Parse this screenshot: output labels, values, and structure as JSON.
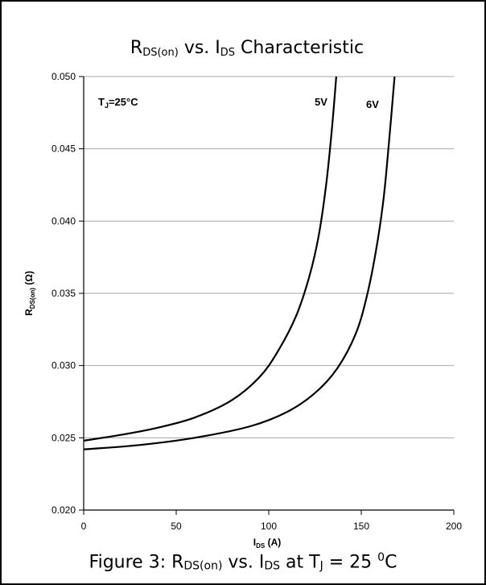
{
  "chart_data": {
    "type": "line",
    "title": {
      "main": "R",
      "sub": "DS(on)",
      "rest": " vs. I",
      "sub2": "DS",
      "tail": " Characteristic"
    },
    "xlabel": {
      "main": "I",
      "sub": "DS",
      "rest": " (A)"
    },
    "ylabel": {
      "main": "R",
      "sub": "DS(on)",
      "rest": " (Ω)"
    },
    "xlim": [
      0,
      200
    ],
    "ylim": [
      0.02,
      0.05
    ],
    "xticks": [
      "0",
      "50",
      "100",
      "150",
      "200"
    ],
    "yticks": [
      "0.020",
      "0.025",
      "0.030",
      "0.035",
      "0.040",
      "0.045",
      "0.050"
    ],
    "grid": "horizontal",
    "annotation": {
      "main": "T",
      "sub": "J",
      "rest": "=25°C"
    },
    "series": [
      {
        "name": "5V",
        "color": "#000000",
        "x": [
          0,
          20,
          40,
          60,
          80,
          95,
          105,
          115,
          122,
          127,
          131,
          134,
          136.5
        ],
        "y": [
          0.0248,
          0.0252,
          0.0257,
          0.0264,
          0.0276,
          0.0292,
          0.031,
          0.0335,
          0.0362,
          0.039,
          0.0425,
          0.0462,
          0.05
        ]
      },
      {
        "name": "6V",
        "color": "#000000",
        "x": [
          0,
          30,
          60,
          90,
          110,
          125,
          137,
          147,
          153,
          158,
          162,
          165,
          168
        ],
        "y": [
          0.0242,
          0.0245,
          0.025,
          0.0258,
          0.0268,
          0.0281,
          0.0298,
          0.0322,
          0.0348,
          0.038,
          0.0415,
          0.0455,
          0.05
        ]
      }
    ]
  },
  "caption": {
    "prefix": "Figure 3: R",
    "sub1": "DS(on)",
    "mid": " vs. I",
    "sub2": "DS",
    "mid2": "  at T",
    "sub3": "J",
    "eq": " = 25 ",
    "sup": "0",
    "unit": "C"
  }
}
